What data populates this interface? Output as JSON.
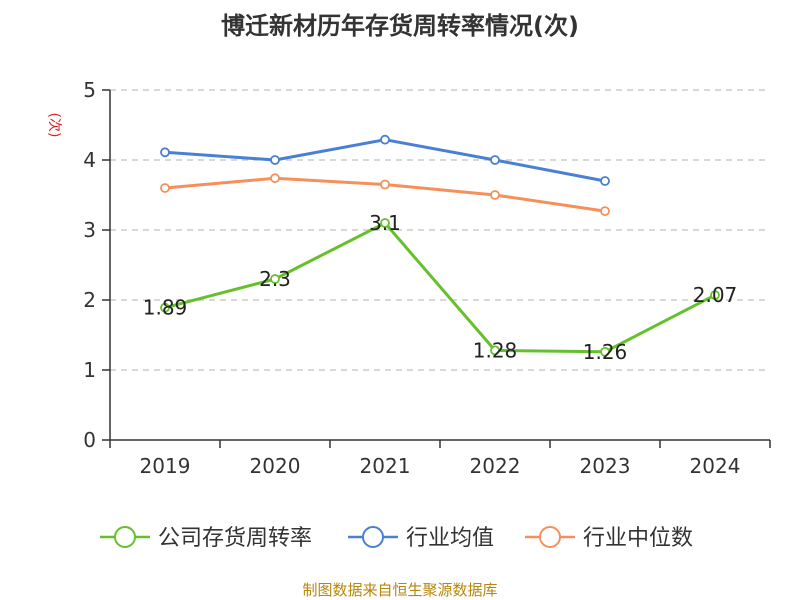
{
  "colors": {
    "company": "#66c02b",
    "industry_avg": "#4a7fd6",
    "industry_median": "#f5905a",
    "ylabel": "#e02020",
    "source": "#b8860b",
    "grid": "#cccccc",
    "axis": "#333333"
  },
  "source_text": "制图数据来自恒生聚源数据库",
  "chart_data": {
    "type": "line",
    "title": "博迁新材历年存货周转率情况(次)",
    "ylabel": "(次)",
    "xlabel": "",
    "categories": [
      "2019",
      "2020",
      "2021",
      "2022",
      "2023",
      "2024"
    ],
    "ylim": [
      0,
      5
    ],
    "yticks": [
      "0",
      "1",
      "2",
      "3",
      "4",
      "5"
    ],
    "grid": true,
    "legend_position": "bottom",
    "series": [
      {
        "name": "公司存货周转率",
        "values": [
          1.89,
          2.3,
          3.1,
          1.28,
          1.26,
          2.07
        ],
        "labels": [
          "1.89",
          "2.3",
          "3.1",
          "1.28",
          "1.26",
          "2.07"
        ]
      },
      {
        "name": "行业均值",
        "values": [
          4.11,
          4.0,
          4.29,
          4.0,
          3.7,
          null
        ]
      },
      {
        "name": "行业中位数",
        "values": [
          3.6,
          3.74,
          3.65,
          3.5,
          3.27,
          null
        ]
      }
    ]
  }
}
